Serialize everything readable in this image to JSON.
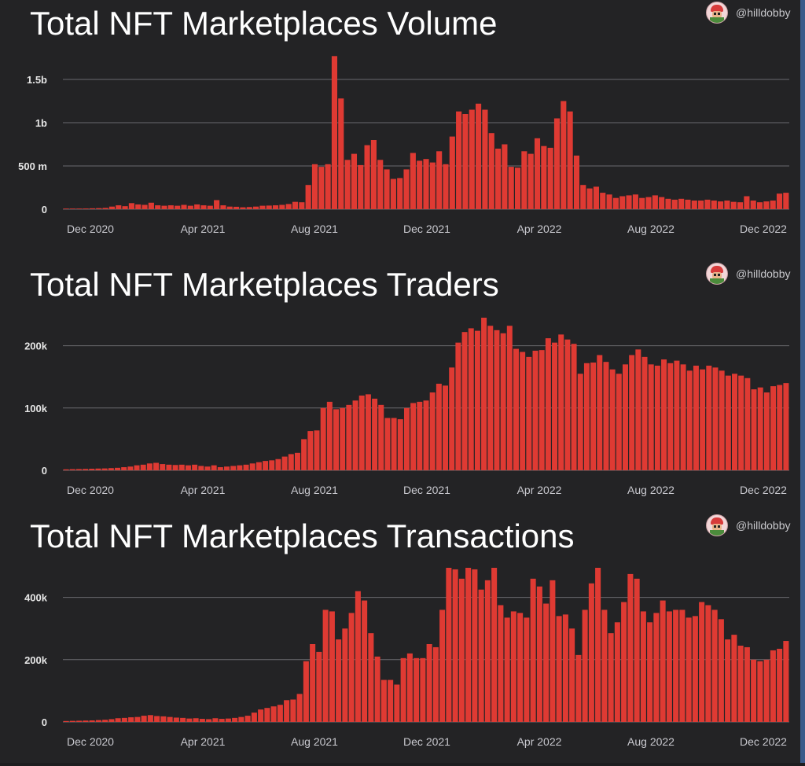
{
  "colors": {
    "bar": "#df3a33",
    "background": "#232325",
    "grid": "#6a6a6e"
  },
  "credit": {
    "handle": "@hilldobby",
    "avatar_icon": "avatar-icon"
  },
  "chart_data": [
    {
      "type": "bar",
      "title": "Total NFT Marketplaces Volume",
      "xlabel": "",
      "ylabel": "",
      "x_ticks": [
        "Dec 2020",
        "Apr 2021",
        "Aug 2021",
        "Dec 2021",
        "Apr 2022",
        "Aug 2022",
        "Dec 2022"
      ],
      "y_ticks": [
        {
          "value": 0,
          "label": "0"
        },
        {
          "value": 500000000,
          "label": "500 m"
        },
        {
          "value": 1000000000,
          "label": "1b"
        },
        {
          "value": 1500000000,
          "label": "1.5b"
        }
      ],
      "ylim": [
        0,
        1800000000
      ],
      "grid": true,
      "values": [
        3000000,
        5000000,
        6000000,
        8000000,
        10000000,
        12000000,
        15000000,
        30000000,
        45000000,
        35000000,
        70000000,
        55000000,
        50000000,
        75000000,
        45000000,
        40000000,
        45000000,
        40000000,
        50000000,
        40000000,
        55000000,
        45000000,
        40000000,
        105000000,
        45000000,
        30000000,
        28000000,
        22000000,
        25000000,
        30000000,
        40000000,
        42000000,
        45000000,
        50000000,
        60000000,
        85000000,
        80000000,
        280000000,
        520000000,
        490000000,
        520000000,
        1770000000,
        1280000000,
        570000000,
        640000000,
        510000000,
        740000000,
        800000000,
        570000000,
        460000000,
        350000000,
        360000000,
        460000000,
        650000000,
        560000000,
        580000000,
        540000000,
        670000000,
        520000000,
        840000000,
        1130000000,
        1100000000,
        1150000000,
        1220000000,
        1150000000,
        880000000,
        700000000,
        750000000,
        490000000,
        480000000,
        670000000,
        640000000,
        820000000,
        730000000,
        710000000,
        1050000000,
        1250000000,
        1130000000,
        620000000,
        280000000,
        240000000,
        260000000,
        190000000,
        170000000,
        130000000,
        150000000,
        160000000,
        170000000,
        130000000,
        140000000,
        160000000,
        140000000,
        120000000,
        110000000,
        120000000,
        110000000,
        100000000,
        100000000,
        110000000,
        100000000,
        90000000,
        100000000,
        85000000,
        80000000,
        150000000,
        100000000,
        80000000,
        90000000,
        100000000,
        180000000,
        190000000
      ]
    },
    {
      "type": "bar",
      "title": "Total NFT Marketplaces Traders",
      "xlabel": "",
      "ylabel": "",
      "x_ticks": [
        "Dec 2020",
        "Apr 2021",
        "Aug 2021",
        "Dec 2021",
        "Apr 2022",
        "Aug 2022",
        "Dec 2022"
      ],
      "y_ticks": [
        {
          "value": 0,
          "label": "0"
        },
        {
          "value": 100000,
          "label": "100k"
        },
        {
          "value": 200000,
          "label": "200k"
        }
      ],
      "ylim": [
        0,
        250000
      ],
      "grid": true,
      "values": [
        1500,
        1800,
        2000,
        2200,
        2500,
        2800,
        3000,
        3500,
        4000,
        5000,
        6000,
        8000,
        9000,
        11000,
        12000,
        10000,
        9000,
        8500,
        9000,
        8000,
        9000,
        7000,
        6000,
        8000,
        5000,
        6000,
        7000,
        8000,
        9000,
        11000,
        13000,
        15000,
        16000,
        18000,
        22000,
        26000,
        28000,
        50000,
        63000,
        64000,
        100000,
        110000,
        98000,
        100000,
        105000,
        112000,
        120000,
        122000,
        115000,
        105000,
        84000,
        84000,
        82000,
        100000,
        108000,
        110000,
        112000,
        125000,
        139000,
        136000,
        165000,
        205000,
        222000,
        228000,
        224000,
        245000,
        232000,
        225000,
        220000,
        232000,
        195000,
        190000,
        182000,
        192000,
        193000,
        212000,
        205000,
        218000,
        210000,
        203000,
        155000,
        172000,
        173000,
        185000,
        174000,
        162000,
        155000,
        170000,
        185000,
        194000,
        182000,
        170000,
        168000,
        178000,
        172000,
        176000,
        170000,
        160000,
        168000,
        162000,
        168000,
        165000,
        160000,
        152000,
        155000,
        152000,
        148000,
        130000,
        133000,
        125000,
        135000,
        137000,
        140000
      ]
    },
    {
      "type": "bar",
      "title": "Total NFT Marketplaces Transactions",
      "xlabel": "",
      "ylabel": "",
      "x_ticks": [
        "Dec 2020",
        "Apr 2021",
        "Aug 2021",
        "Dec 2021",
        "Apr 2022",
        "Aug 2022",
        "Dec 2022"
      ],
      "y_ticks": [
        {
          "value": 0,
          "label": "0"
        },
        {
          "value": 200000,
          "label": "200k"
        },
        {
          "value": 400000,
          "label": "400k"
        }
      ],
      "ylim": [
        0,
        500000
      ],
      "grid": true,
      "values": [
        3000,
        3500,
        4000,
        4500,
        5000,
        6000,
        7000,
        9000,
        12000,
        13000,
        15000,
        16000,
        20000,
        22000,
        19000,
        18000,
        16000,
        14000,
        13000,
        11000,
        12000,
        10000,
        9000,
        12000,
        10000,
        11000,
        13000,
        16000,
        20000,
        30000,
        40000,
        45000,
        50000,
        55000,
        70000,
        72000,
        90000,
        195000,
        250000,
        225000,
        360000,
        355000,
        265000,
        300000,
        350000,
        420000,
        390000,
        285000,
        210000,
        135000,
        135000,
        120000,
        205000,
        220000,
        205000,
        205000,
        250000,
        240000,
        360000,
        495000,
        490000,
        460000,
        495000,
        490000,
        425000,
        455000,
        495000,
        375000,
        335000,
        355000,
        350000,
        335000,
        460000,
        435000,
        380000,
        455000,
        340000,
        345000,
        300000,
        215000,
        360000,
        445000,
        495000,
        360000,
        285000,
        320000,
        385000,
        475000,
        460000,
        355000,
        320000,
        350000,
        390000,
        355000,
        360000,
        360000,
        335000,
        340000,
        385000,
        375000,
        360000,
        330000,
        265000,
        280000,
        245000,
        240000,
        200000,
        195000,
        200000,
        230000,
        235000,
        260000
      ]
    }
  ]
}
